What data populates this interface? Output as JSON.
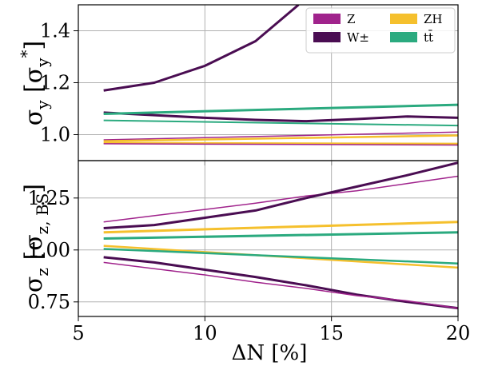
{
  "colors": {
    "Z": "#a0238c",
    "W": "#4a0d52",
    "ZH": "#f5c02d",
    "tt": "#2baa7f"
  },
  "chart_data": [
    {
      "type": "line",
      "panel": "top",
      "ylabel": "σ_y [σ_y*]",
      "ylabel_main": "σ",
      "ylabel_sub": "y",
      "ylabel_bracket_main": "σ",
      "ylabel_bracket_sub": "y",
      "ylabel_bracket_sup": "*",
      "xlim": [
        5,
        20
      ],
      "ylim": [
        0.9,
        1.5
      ],
      "yticks": [
        1.0,
        1.2,
        1.4
      ],
      "ytick_labels": [
        "1.0",
        "1.2",
        "1.4"
      ],
      "grid": true,
      "legend": {
        "placement": "top-right",
        "columns": 2,
        "entries": [
          {
            "label": "Z",
            "color_key": "Z"
          },
          {
            "label": "ZH",
            "color_key": "ZH"
          },
          {
            "label": "W±",
            "color_key": "W"
          },
          {
            "label": "tt̄",
            "color_key": "tt"
          }
        ]
      },
      "series": [
        {
          "color_key": "W",
          "width": 3,
          "x": [
            6,
            8,
            10,
            12,
            13.7
          ],
          "y": [
            1.17,
            1.2,
            1.265,
            1.36,
            1.5
          ]
        },
        {
          "color_key": "W",
          "width": 3,
          "x": [
            6,
            8,
            10,
            12,
            14,
            16,
            18,
            20
          ],
          "y": [
            1.085,
            1.075,
            1.065,
            1.057,
            1.052,
            1.06,
            1.07,
            1.065
          ]
        },
        {
          "color_key": "tt",
          "width": 3,
          "x": [
            6,
            20
          ],
          "y": [
            1.08,
            1.115
          ]
        },
        {
          "color_key": "tt",
          "width": 2,
          "x": [
            6,
            20
          ],
          "y": [
            1.055,
            1.035
          ]
        },
        {
          "color_key": "Z",
          "width": 1.5,
          "x": [
            6,
            20
          ],
          "y": [
            0.98,
            1.01
          ]
        },
        {
          "color_key": "ZH",
          "width": 2.5,
          "x": [
            6,
            20
          ],
          "y": [
            0.975,
            0.997
          ]
        },
        {
          "color_key": "ZH",
          "width": 2.5,
          "x": [
            6,
            20
          ],
          "y": [
            0.968,
            0.965
          ]
        },
        {
          "color_key": "Z",
          "width": 1.5,
          "x": [
            6,
            20
          ],
          "y": [
            0.965,
            0.96
          ]
        }
      ]
    },
    {
      "type": "line",
      "panel": "bottom",
      "ylabel": "σ_z [σ_z,BS]",
      "ylabel_main": "σ",
      "ylabel_sub": "z",
      "ylabel_bracket_main": "σ",
      "ylabel_bracket_sub": "z, BS",
      "xlabel": "ΔN [%]",
      "xlim": [
        5,
        20
      ],
      "ylim": [
        0.68,
        1.43
      ],
      "xticks": [
        5,
        10,
        15,
        20
      ],
      "xtick_labels": [
        "5",
        "10",
        "15",
        "20"
      ],
      "yticks": [
        0.75,
        1.0,
        1.25
      ],
      "ytick_labels": [
        "0.75",
        "1.00",
        "1.25"
      ],
      "grid": true,
      "series": [
        {
          "color_key": "Z",
          "width": 1.5,
          "x": [
            6,
            8,
            10,
            12,
            14,
            16,
            18,
            20
          ],
          "y": [
            1.135,
            1.165,
            1.195,
            1.225,
            1.26,
            1.285,
            1.32,
            1.355
          ]
        },
        {
          "color_key": "W",
          "width": 3,
          "x": [
            6,
            8,
            10,
            12,
            14,
            16,
            18,
            20
          ],
          "y": [
            1.105,
            1.12,
            1.155,
            1.19,
            1.25,
            1.305,
            1.36,
            1.42
          ]
        },
        {
          "color_key": "ZH",
          "width": 3,
          "x": [
            6,
            20
          ],
          "y": [
            1.085,
            1.135
          ]
        },
        {
          "color_key": "tt",
          "width": 3,
          "x": [
            6,
            20
          ],
          "y": [
            1.055,
            1.085
          ]
        },
        {
          "color_key": "ZH",
          "width": 2.5,
          "x": [
            6,
            20
          ],
          "y": [
            1.02,
            0.915
          ]
        },
        {
          "color_key": "tt",
          "width": 2.5,
          "x": [
            6,
            20
          ],
          "y": [
            1.005,
            0.935
          ]
        },
        {
          "color_key": "W",
          "width": 3,
          "x": [
            6,
            8,
            10,
            12,
            14,
            16,
            18,
            20
          ],
          "y": [
            0.965,
            0.94,
            0.905,
            0.87,
            0.83,
            0.785,
            0.75,
            0.72
          ]
        },
        {
          "color_key": "Z",
          "width": 1.5,
          "x": [
            6,
            8,
            10,
            12,
            14,
            16,
            18,
            20
          ],
          "y": [
            0.94,
            0.91,
            0.88,
            0.845,
            0.815,
            0.78,
            0.755,
            0.72
          ]
        }
      ]
    }
  ]
}
